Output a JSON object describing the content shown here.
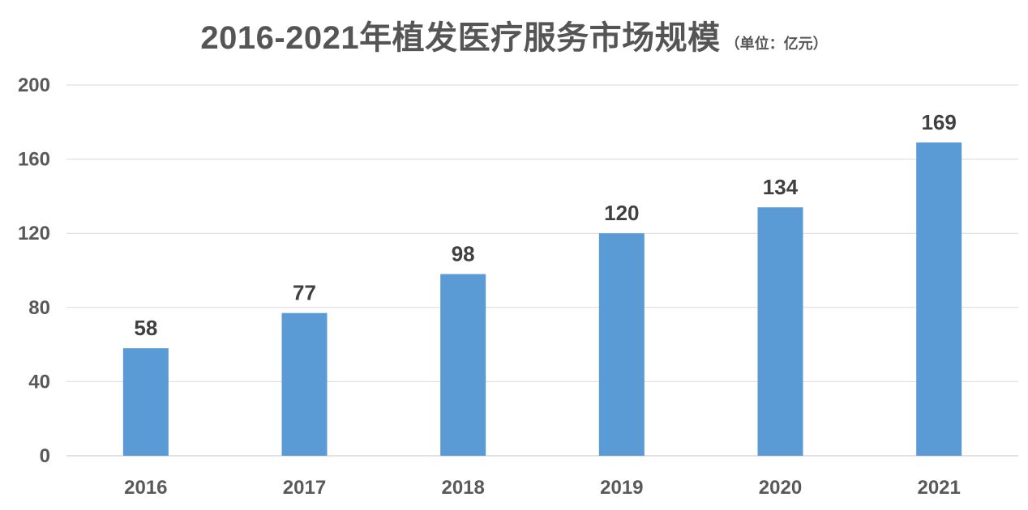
{
  "chart_data": {
    "type": "bar",
    "title": "2016-2021年植发医疗服务市场规模",
    "unit_note": "（单位：亿元）",
    "xlabel": "",
    "ylabel": "",
    "categories": [
      "2016",
      "2017",
      "2018",
      "2019",
      "2020",
      "2021"
    ],
    "values": [
      58,
      77,
      98,
      120,
      134,
      169
    ],
    "data_labels": [
      "58",
      "77",
      "98",
      "120",
      "134",
      "169"
    ],
    "ylim": [
      0,
      200
    ],
    "yticks": [
      0,
      40,
      80,
      120,
      160,
      200
    ],
    "ytick_labels": [
      "0",
      "40",
      "80",
      "120",
      "160",
      "200"
    ],
    "grid": true,
    "legend": "none",
    "bar_color": "#5b9bd5"
  }
}
